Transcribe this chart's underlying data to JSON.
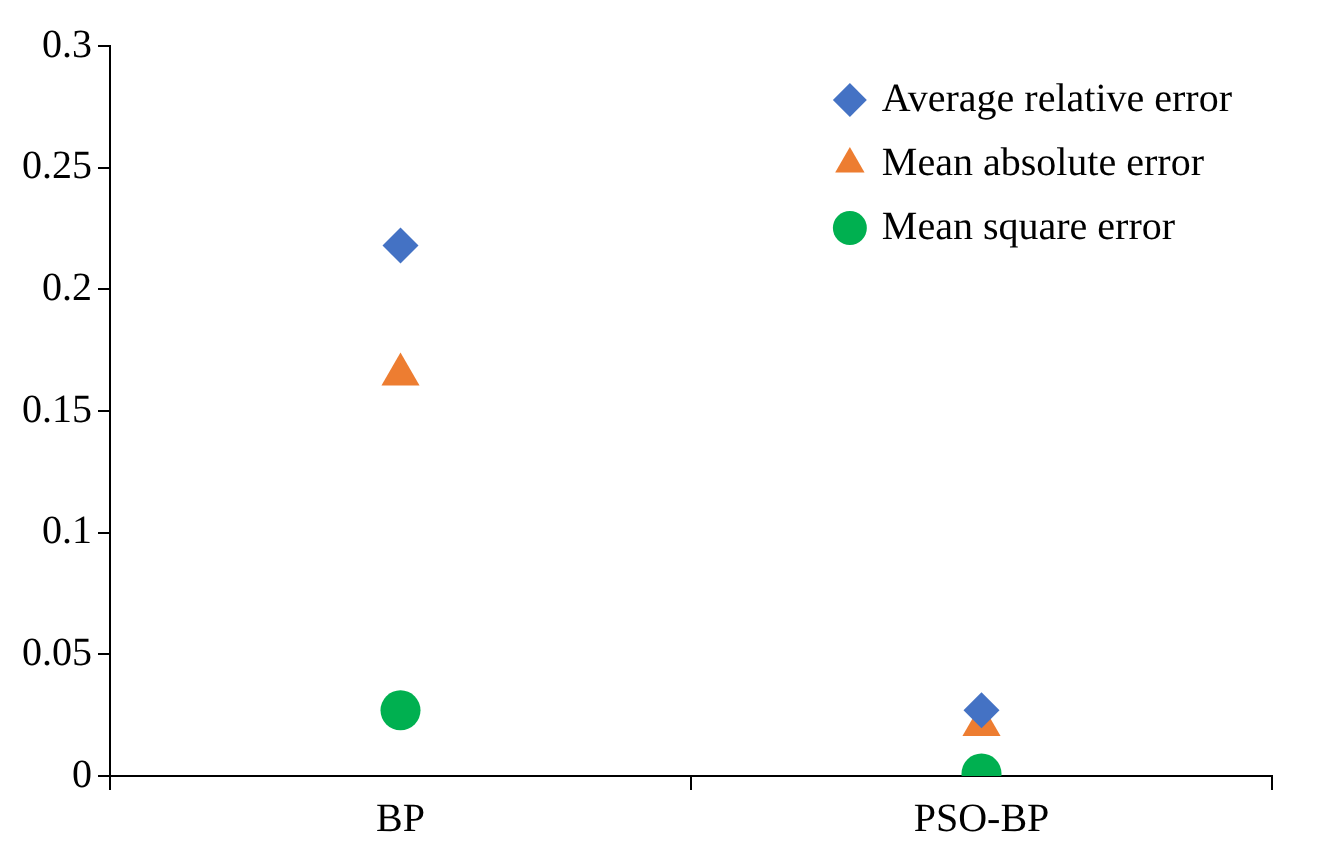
{
  "chart_data": {
    "type": "scatter",
    "categories": [
      "BP",
      "PSO-BP"
    ],
    "series": [
      {
        "name": "Average relative error",
        "color": "#4472c4",
        "marker": "diamond",
        "values": [
          0.218,
          0.027
        ]
      },
      {
        "name": "Mean absolute error",
        "color": "#ed7d31",
        "marker": "triangle",
        "values": [
          0.165,
          0.021
        ]
      },
      {
        "name": "Mean square error",
        "color": "#00b050",
        "marker": "circle",
        "values": [
          0.027,
          0.001
        ]
      }
    ],
    "ylim": [
      0,
      0.3
    ],
    "yticks": [
      0,
      0.05,
      0.1,
      0.15,
      0.2,
      0.25,
      0.3
    ],
    "grid": false,
    "legend": "top right"
  }
}
